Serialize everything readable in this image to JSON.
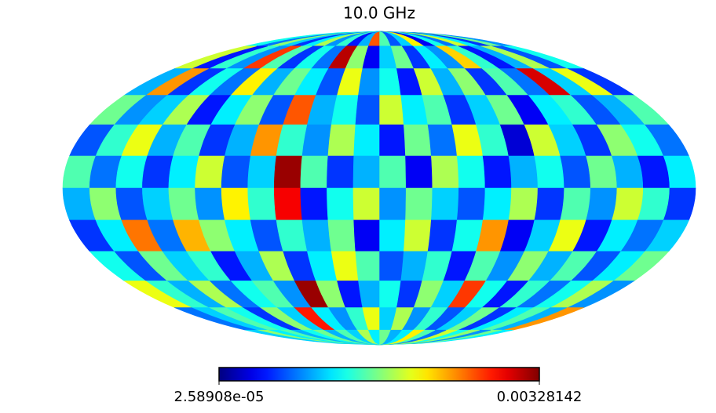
{
  "chart_data": {
    "type": "mollweide_map",
    "title": "10.0 GHz",
    "colormap": "jet",
    "colorbar": {
      "lim": [
        2.58908e-05,
        0.00328142
      ],
      "ticks": [
        {
          "value": 2.58908e-05,
          "label": "2.58908e-05"
        },
        {
          "value": 0.00328142,
          "label": "0.00328142"
        }
      ]
    },
    "values": [
      [
        0.0009,
        0.0016,
        0.0006,
        0.0012,
        0.0019,
        0.0008,
        0.0013,
        0.0004,
        0.0021,
        0.0011,
        0.0007,
        0.0015,
        0.0026,
        0.001,
        0.0005,
        0.0014,
        0.0009,
        0.0018,
        0.0012,
        0.0006,
        0.0011,
        0.0017,
        0.0008,
        0.0013
      ],
      [
        0.0013,
        0.0007,
        0.0018,
        0.001,
        0.0005,
        0.0014,
        0.0022,
        0.0009,
        0.0012,
        0.0006,
        0.0016,
        0.0011,
        0.0004,
        0.0017,
        0.0031,
        0.0008,
        0.0013,
        0.0006,
        0.0015,
        0.0027,
        0.0009,
        0.0014,
        0.0005,
        0.0019
      ],
      [
        0.0006,
        0.002,
        0.0011,
        0.003,
        0.0008,
        0.0015,
        0.0006,
        0.0017,
        0.001,
        0.0019,
        0.0005,
        0.0013,
        0.0009,
        0.002,
        0.0007,
        0.0012,
        0.0016,
        0.001,
        0.0021,
        0.0008,
        0.0013,
        0.0006,
        0.0024,
        0.001
      ],
      [
        0.0015,
        0.001,
        0.0007,
        0.0014,
        0.0012,
        0.0004,
        0.0016,
        0.0011,
        0.0006,
        0.0015,
        0.0012,
        0.0019,
        0.0007,
        0.0013,
        0.001,
        0.0026,
        0.0007,
        0.0017,
        0.0012,
        0.0005,
        0.0018,
        0.0011,
        0.0009,
        0.0016
      ],
      [
        0.0008,
        0.0013,
        0.0017,
        0.0006,
        0.0011,
        0.0019,
        0.0003,
        0.0014,
        0.002,
        0.0008,
        0.0016,
        0.0005,
        0.0012,
        0.0018,
        0.0009,
        0.0014,
        0.0024,
        0.001,
        0.0006,
        0.0015,
        0.001,
        0.002,
        0.0014,
        0.0007
      ],
      [
        0.0012,
        0.0005,
        0.001,
        0.0016,
        0.0007,
        0.0013,
        0.001,
        0.0005,
        0.0013,
        0.0018,
        0.0004,
        0.0015,
        0.001,
        0.0006,
        0.0015,
        0.0032,
        0.0011,
        0.0007,
        0.0019,
        0.0012,
        0.0006,
        0.0013,
        0.0008,
        0.0015
      ],
      [
        0.0006,
        0.0014,
        0.0019,
        0.0009,
        0.0015,
        0.0006,
        0.0018,
        0.0012,
        0.0007,
        0.0011,
        0.0016,
        0.0009,
        0.0019,
        0.0013,
        0.0005,
        0.0029,
        0.0014,
        0.0021,
        0.0009,
        0.0016,
        0.0011,
        0.0007,
        0.0017,
        0.001
      ],
      [
        0.0011,
        0.0008,
        0.0012,
        0.0005,
        0.002,
        0.0011,
        0.0004,
        0.0024,
        0.0013,
        0.0006,
        0.0019,
        0.0012,
        0.0004,
        0.0016,
        0.001,
        0.0014,
        0.0007,
        0.0012,
        0.0017,
        0.0023,
        0.0008,
        0.0025,
        0.0012,
        0.0006
      ],
      [
        0.0016,
        0.0012,
        0.0007,
        0.0015,
        0.001,
        0.0017,
        0.0009,
        0.0015,
        0.0005,
        0.0014,
        0.001,
        0.0007,
        0.0015,
        0.002,
        0.0012,
        0.0006,
        0.0018,
        0.001,
        0.0005,
        0.0014,
        0.0011,
        0.0016,
        0.0007,
        0.0013
      ],
      [
        0.0009,
        0.0018,
        0.0013,
        0.0008,
        0.0014,
        0.0005,
        0.0013,
        0.0027,
        0.0011,
        0.0017,
        0.0006,
        0.0013,
        0.001,
        0.0005,
        0.0017,
        0.0032,
        0.0009,
        0.0015,
        0.0013,
        0.0008,
        0.0018,
        0.001,
        0.0014,
        0.002
      ],
      [
        0.0024,
        0.001,
        0.0015,
        0.0012,
        0.0006,
        0.0016,
        0.0011,
        0.0007,
        0.0014,
        0.0009,
        0.0018,
        0.0011,
        0.002,
        0.0014,
        0.0009,
        0.0012,
        0.0028,
        0.0011,
        0.0017,
        0.0006,
        0.0013,
        0.0015,
        0.0011,
        0.0008
      ],
      [
        0.0012,
        0.0016,
        0.0009,
        0.0017,
        0.0013,
        0.0019,
        0.0008,
        0.0015,
        0.0021,
        0.0012,
        0.001,
        0.0016,
        0.0012,
        0.0018,
        0.0011,
        0.0015,
        0.001,
        0.0016,
        0.0013,
        0.001,
        0.0015,
        0.0012,
        0.0017,
        0.0011
      ]
    ]
  }
}
